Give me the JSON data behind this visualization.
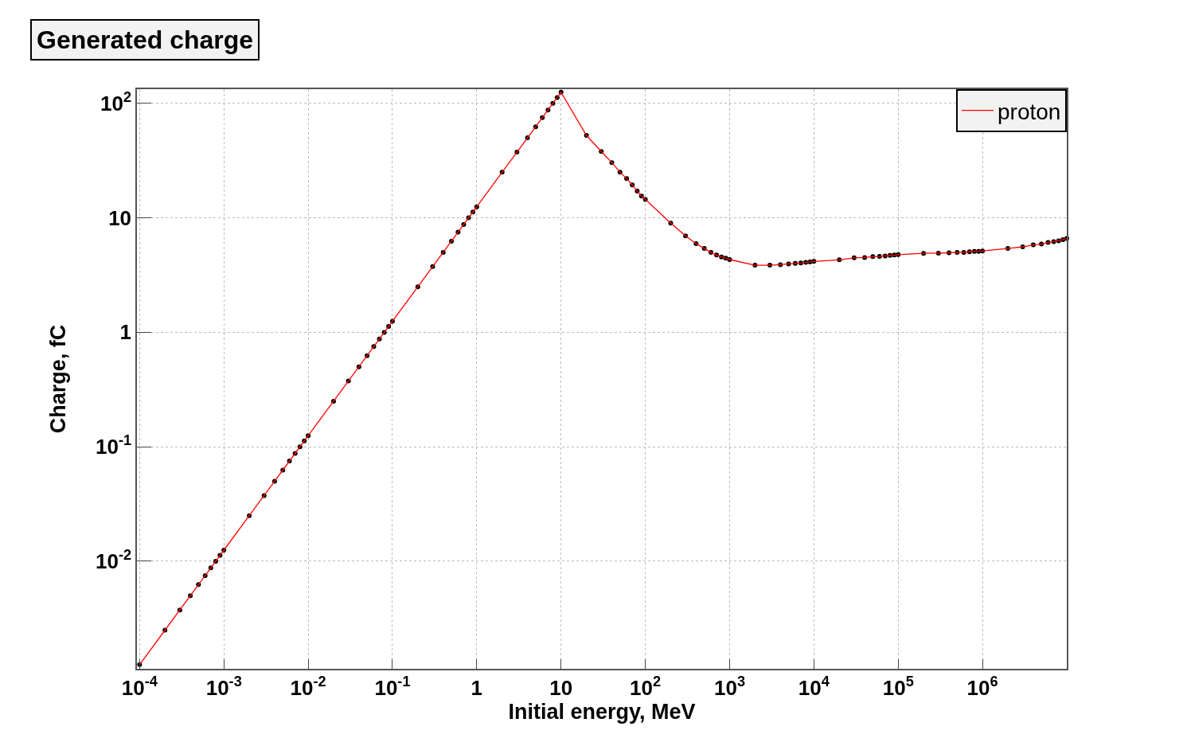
{
  "chart_data": {
    "type": "line",
    "title": "Generated charge",
    "xlabel": "Initial energy, MeV",
    "ylabel": "Charge, fC",
    "log": "xy",
    "grid": true,
    "legend": "top right",
    "marker": "circle",
    "line_style": "solid",
    "xlim": [
      9.3e-05,
      10000000.0
    ],
    "ylim": [
      0.00115,
      133
    ],
    "xticks": [
      {
        "value": 0.0001,
        "label": "10$^{-4}$"
      },
      {
        "value": 0.001,
        "label": "10$^{-3}$"
      },
      {
        "value": 0.01,
        "label": "10$^{-2}$"
      },
      {
        "value": 0.1,
        "label": "10$^{-1}$"
      },
      1,
      10,
      {
        "value": 100,
        "label": "10$^{2}$"
      },
      {
        "value": 1000,
        "label": "10$^{3}$"
      },
      {
        "value": 10000.0,
        "label": "10$^{4}$"
      },
      {
        "value": 100000.0,
        "label": "10$^{5}$"
      },
      {
        "value": 1000000.0,
        "label": "10$^{6}$"
      }
    ],
    "yticks": [
      {
        "value": 0.01,
        "label": "10$^{-2}$"
      },
      {
        "value": 0.1,
        "label": "10$^{-1}$"
      },
      1,
      10,
      {
        "value": 100,
        "label": "10$^{2}$"
      }
    ],
    "x": [
      0.0001,
      0.0002,
      0.0003,
      0.0004,
      0.0005,
      0.0006,
      0.0007,
      0.0008,
      0.0009,
      0.001,
      0.002,
      0.003,
      0.004,
      0.005,
      0.006,
      0.007,
      0.008,
      0.009,
      0.01,
      0.02,
      0.03,
      0.04,
      0.05,
      0.06,
      0.07,
      0.08,
      0.09,
      0.1,
      0.2,
      0.3,
      0.4,
      0.5,
      0.6,
      0.7,
      0.8,
      0.9,
      1,
      2,
      3,
      4,
      5,
      6,
      7,
      8,
      9,
      10,
      20,
      30,
      40,
      50,
      60,
      70,
      80,
      90,
      100,
      200,
      300,
      400,
      500,
      600,
      700,
      800,
      900,
      1000,
      2000,
      3000,
      4000,
      5000,
      6000,
      7000,
      8000,
      9000,
      10000.0,
      20000.0,
      30000.0,
      40000.0,
      50000.0,
      60000.0,
      70000.0,
      80000.0,
      90000.0,
      100000.0,
      200000.0,
      300000.0,
      400000.0,
      500000.0,
      600000.0,
      700000.0,
      800000.0,
      900000.0,
      1000000.0,
      2000000.0,
      3000000.0,
      4000000.0,
      5000000.0,
      6000000.0,
      7000000.0,
      8000000.0,
      9000000.0,
      10000000.0
    ],
    "series": [
      {
        "name": "proton",
        "color": "#ff0000",
        "values": [
          0.00125,
          0.0025,
          0.00375,
          0.005,
          0.00625,
          0.0075,
          0.00875,
          0.01,
          0.01125,
          0.0125,
          0.025,
          0.0375,
          0.05,
          0.0625,
          0.075,
          0.0875,
          0.1,
          0.1125,
          0.125,
          0.25,
          0.375,
          0.5,
          0.625,
          0.75,
          0.875,
          1,
          1.125,
          1.25,
          2.5,
          3.75,
          5,
          6.25,
          7.5,
          8.75,
          10,
          11.25,
          12.5,
          25,
          37.5,
          50,
          62.5,
          75,
          87.5,
          100,
          112.5,
          125,
          52.5,
          38,
          30.4,
          25.1,
          22,
          19.4,
          17.1,
          15.5,
          14.5,
          9.0,
          6.95,
          5.95,
          5.4,
          5.0,
          4.73,
          4.56,
          4.44,
          4.32,
          3.86,
          3.86,
          3.9,
          3.96,
          4.0,
          4.03,
          4.08,
          4.12,
          4.16,
          4.3,
          4.47,
          4.5,
          4.58,
          4.6,
          4.65,
          4.7,
          4.73,
          4.77,
          4.9,
          4.92,
          4.95,
          5.0,
          5.0,
          5.05,
          5.1,
          5.1,
          5.14,
          5.4,
          5.58,
          5.8,
          5.9,
          6.1,
          6.2,
          6.3,
          6.45,
          6.6
        ]
      }
    ]
  }
}
